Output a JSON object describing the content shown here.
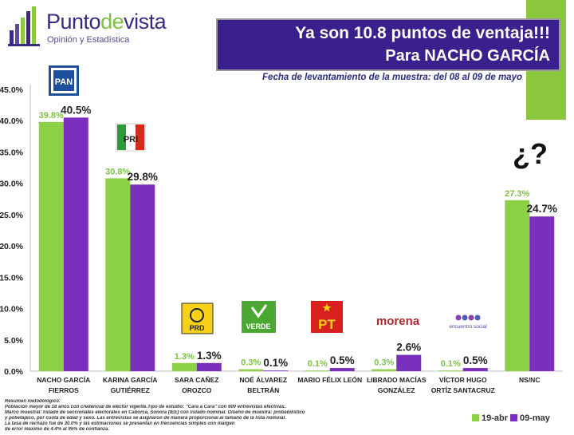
{
  "brand": {
    "name_part1": "Punto",
    "name_part2": "de",
    "name_part3": "vista",
    "subtitle": "Opinión y Estadística"
  },
  "banner": {
    "line1": "Ya son 10.8 puntos de ventaja!!!",
    "line2": "Para NACHO GARCÍA"
  },
  "date_line": "Fecha de levantamiento de la muestra: del 08 al 09 de mayo",
  "question_mark": "¿?",
  "colors": {
    "series1": "#8dd147",
    "series2": "#7b2fbe",
    "banner": "#3b1f8c",
    "accent_green": "#8dc63f"
  },
  "party_logos": [
    "PAN",
    "PRI",
    "PRD",
    "VERDE",
    "PT",
    "morena",
    "encuentro social"
  ],
  "chart_data": {
    "type": "bar",
    "categories": [
      [
        "NACHO GARCÍA",
        "FIERROS"
      ],
      [
        "KARINA GARCÍA",
        "GUTIÉRREZ"
      ],
      [
        "SARA CAÑEZ",
        "OROZCO"
      ],
      [
        "NOÉ ÁLVAREZ",
        "BELTRÁN"
      ],
      [
        "MARIO FÉLIX LEÓN"
      ],
      [
        "LIBRADO MACÍAS",
        "GONZÁLEZ"
      ],
      [
        "VÍCTOR HUGO",
        "ORTÍZ SANTACRUZ"
      ],
      [
        "NS/NC"
      ]
    ],
    "series": [
      {
        "name": "19-abr",
        "values": [
          39.8,
          30.8,
          1.3,
          0.3,
          0.1,
          0.3,
          0.1,
          27.3
        ],
        "labels": [
          "39.8%",
          "30.8%",
          "1.3%",
          "0.3%",
          "0.1%",
          "0.3%",
          "0.1%",
          "27.3%"
        ]
      },
      {
        "name": "09-may",
        "values": [
          40.5,
          29.8,
          1.3,
          0.1,
          0.5,
          2.6,
          0.5,
          24.7
        ],
        "labels": [
          "40.5%",
          "29.8%",
          "1.3%",
          "0.1%",
          "0.5%",
          "2.6%",
          "0.5%",
          "24.7%"
        ]
      }
    ],
    "ylim": [
      0,
      45
    ],
    "yticks": [
      0,
      5,
      10,
      15,
      20,
      25,
      30,
      35,
      40,
      45
    ],
    "ytick_labels": [
      "0.0%",
      "5.0%",
      "10.0%",
      "15.0%",
      "20.0%",
      "25.0%",
      "30.0%",
      "35.0%",
      "40.0%",
      "45.0%"
    ],
    "grid": false,
    "legend": "bottom-right"
  },
  "methodology": [
    "Resumen metodológico:",
    "Población mayor de 18 años con credencial de elector vigente.Tipo de estudio: \"Cara a Cara\" con 600 entrevistas efectivas.",
    "Marco muestral: listado de seccionales electorales en Caborca, Sonora (IEE) con listado nominal. Diseño de muestra: probabilístico",
    "y polietápico, por cuota de edad y sexo. Las entrevistas se asignaron de manera proporcional al tamaño de la lista nominal.",
    "La tasa de rechazo fue de 30.0% y las estimaciones se presentan en frecuencias simples con margen",
    "de error máximo de 4.4% al 95% de confianza."
  ]
}
